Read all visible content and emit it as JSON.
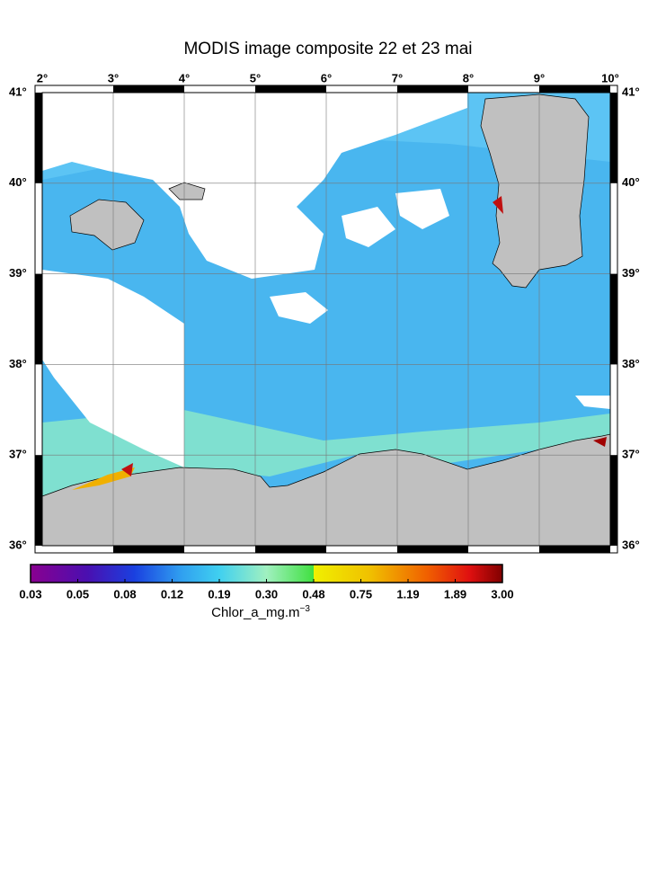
{
  "title": "MODIS image composite 22 et 23 mai",
  "map": {
    "lonlim": [
      2,
      10
    ],
    "latlim": [
      36,
      41
    ],
    "lon_ticks": [
      {
        "value": 2,
        "label": "2°"
      },
      {
        "value": 3,
        "label": "3°"
      },
      {
        "value": 4,
        "label": "4°"
      },
      {
        "value": 5,
        "label": "5°"
      },
      {
        "value": 6,
        "label": "6°"
      },
      {
        "value": 7,
        "label": "7°"
      },
      {
        "value": 8,
        "label": "8°"
      },
      {
        "value": 9,
        "label": "9°"
      },
      {
        "value": 10,
        "label": "10°"
      }
    ],
    "lat_ticks": [
      {
        "value": 36,
        "label": "36°"
      },
      {
        "value": 37,
        "label": "37°"
      },
      {
        "value": 38,
        "label": "38°"
      },
      {
        "value": 39,
        "label": "39°"
      },
      {
        "value": 40,
        "label": "40°"
      },
      {
        "value": 41,
        "label": "41°"
      }
    ]
  },
  "colorbar": {
    "ticks": [
      "0.03",
      "0.05",
      "0.08",
      "0.12",
      "0.19",
      "0.30",
      "0.48",
      "0.75",
      "1.19",
      "1.89",
      "3.00"
    ],
    "label": "Chlor_a_mg.m",
    "label_exponent": "−3"
  }
}
